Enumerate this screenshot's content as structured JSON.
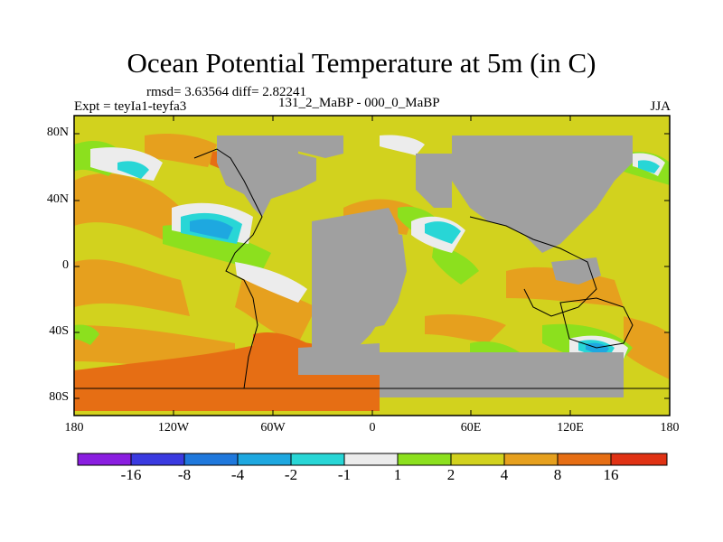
{
  "header": {
    "title": "Ocean Potential Temperature at 5m (in C)",
    "stats": "rmsd= 3.63564 diff= 2.82241",
    "expt": "Expt = teyIa1-teyfa3",
    "period": "131_2_MaBP - 000_0_MaBP",
    "season": "JJA"
  },
  "axes": {
    "x_ticks": [
      "180",
      "120W",
      "60W",
      "0",
      "60E",
      "120E",
      "180"
    ],
    "y_ticks": [
      "80N",
      "40N",
      "0",
      "40S",
      "80S"
    ]
  },
  "colorbar": {
    "labels": [
      "-16",
      "-8",
      "-4",
      "-2",
      "-1",
      "1",
      "2",
      "4",
      "8",
      "16"
    ],
    "colors": [
      "#8a1ee0",
      "#3a3ae0",
      "#1f78dc",
      "#1ea8e0",
      "#28d6d6",
      "#ececec",
      "#8ce01e",
      "#d2d21e",
      "#e6a01e",
      "#e66e14",
      "#e03214"
    ]
  },
  "palette": {
    "land": "#a0a0a0",
    "background_anomaly": "#d2d21e"
  }
}
